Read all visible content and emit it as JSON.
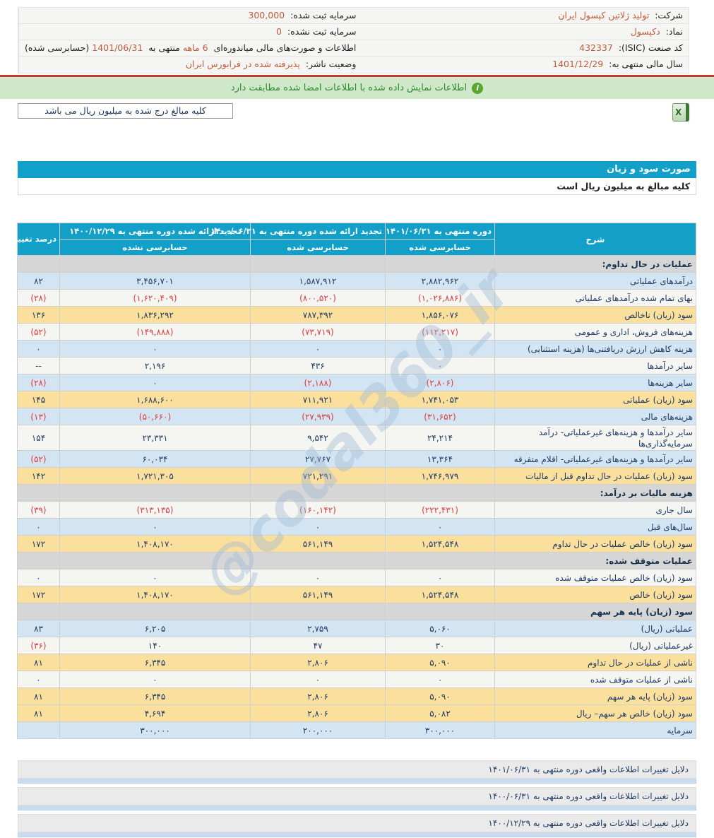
{
  "meta": {
    "company_label": "شرکت:",
    "company_value": "تولید ژلاتین کپسول ایران",
    "symbol_label": "نماد:",
    "symbol_value": "دکپسول",
    "isic_label": "کد صنعت (ISIC):",
    "isic_value": "432337",
    "fiscal_year_label": "سال مالی منتهی به:",
    "fiscal_year_value": "1401/12/29",
    "registered_capital_label": "سرمایه ثبت شده:",
    "registered_capital_value": "300,000",
    "unregistered_capital_label": "سرمایه ثبت نشده:",
    "unregistered_capital_value": "0",
    "report_line_prefix": "اطلاعات و صورت‌های مالی میاندوره‌ای",
    "report_period": "6 ماهه",
    "report_line_mid": "منتهی به",
    "report_date": "1401/06/31",
    "report_line_suffix": "(حسابرسی شده)",
    "publisher_status_label": "وضعیت ناشر:",
    "publisher_status_value": "پذیرفته شده در فرابورس ایران"
  },
  "notices": {
    "signed_match": "اطلاعات نمایش داده شده با اطلاعات امضا شده مطابقت دارد",
    "unit_note": "کلیه مبالغ درج شده به میلیون ریال می باشد"
  },
  "statement": {
    "title": "صورت سود و زیان",
    "subtitle": "کلیه مبالغ به میلیون ریال است"
  },
  "table": {
    "headers": {
      "description": "شرح",
      "period_current": "دوره منتهی به ۱۴۰۱/۰۶/۳۱",
      "period_current_sub": "حسابرسی شده",
      "period_prev": "تجدید ارائه شده دوره منتهی به ۱۴۰۰/۰۶/۳۱",
      "period_prev_sub": "حسابرسی شده",
      "period_year": "تجدید ارائه شده دوره منتهی به ۱۴۰۰/۱۲/۲۹",
      "period_year_sub": "حسابرسی نشده",
      "pct_change": "درصد تغییر"
    },
    "rows": [
      {
        "type": "section",
        "bg": "gray",
        "label": "عملیات در حال تداوم:",
        "v1": "",
        "v2": "",
        "v3": "",
        "pct": ""
      },
      {
        "type": "data",
        "bg": "blue",
        "label": "درآمدهای عملیاتی",
        "v1": "۲,۸۸۲,۹۶۲",
        "v2": "۱,۵۸۷,۹۱۲",
        "v3": "۳,۴۵۶,۷۰۱",
        "pct": "۸۲"
      },
      {
        "type": "data",
        "bg": "white",
        "label": "بهای تمام شده درآمدهای عملیاتی",
        "v1": "(۱,۰۲۶,۸۸۶)",
        "v2": "(۸۰۰,۵۲۰)",
        "v3": "(۱,۶۲۰,۴۰۹)",
        "pct": "(۲۸)"
      },
      {
        "type": "data",
        "bg": "yellow",
        "label": "سود (زیان) ناخالص",
        "v1": "۱,۸۵۶,۰۷۶",
        "v2": "۷۸۷,۳۹۲",
        "v3": "۱,۸۳۶,۲۹۲",
        "pct": "۱۳۶"
      },
      {
        "type": "data",
        "bg": "white",
        "label": "هزینه‌های فروش، اداری و عمومی",
        "v1": "(۱۱۲,۲۱۷)",
        "v2": "(۷۳,۷۱۹)",
        "v3": "(۱۴۹,۸۸۸)",
        "pct": "(۵۲)"
      },
      {
        "type": "data",
        "bg": "blue",
        "label": "هزینه کاهش ارزش دریافتنی‌ها (هزینه استثنایی)",
        "v1": "۰",
        "v2": "۰",
        "v3": "۰",
        "pct": "۰"
      },
      {
        "type": "data",
        "bg": "white",
        "label": "سایر درآمدها",
        "v1": "۰",
        "v2": "۴۳۶",
        "v3": "۲,۱۹۶",
        "pct": "--"
      },
      {
        "type": "data",
        "bg": "blue",
        "label": "سایر هزینه‌ها",
        "v1": "(۲,۸۰۶)",
        "v2": "(۲,۱۸۸)",
        "v3": "۰",
        "pct": "(۲۸)"
      },
      {
        "type": "data",
        "bg": "yellow",
        "label": "سود (زیان) عملیاتی",
        "v1": "۱,۷۴۱,۰۵۳",
        "v2": "۷۱۱,۹۲۱",
        "v3": "۱,۶۸۸,۶۰۰",
        "pct": "۱۴۵"
      },
      {
        "type": "data",
        "bg": "blue",
        "label": "هزینه‌های مالی",
        "v1": "(۳۱,۶۵۲)",
        "v2": "(۲۷,۹۳۹)",
        "v3": "(۵۰,۶۶۰)",
        "pct": "(۱۳)"
      },
      {
        "type": "data",
        "bg": "white",
        "tall": true,
        "label": "سایر درآمدها و هزینه‌های غیرعملیاتی- درآمد سرمایه‌گذاری‌ها",
        "v1": "۲۴,۲۱۴",
        "v2": "۹,۵۴۲",
        "v3": "۲۳,۳۳۱",
        "pct": "۱۵۴"
      },
      {
        "type": "data",
        "bg": "blue",
        "label": "سایر درآمدها و هزینه‌های غیرعملیاتی- اقلام متفرقه",
        "v1": "۱۳,۳۶۴",
        "v2": "۲۷,۷۶۷",
        "v3": "۶۰,۰۳۴",
        "pct": "(۵۲)"
      },
      {
        "type": "data",
        "bg": "yellow",
        "label": "سود (زیان) عملیات در حال تداوم قبل از مالیات",
        "v1": "۱,۷۴۶,۹۷۹",
        "v2": "۷۲۱,۲۹۱",
        "v3": "۱,۷۲۱,۳۰۵",
        "pct": "۱۴۲"
      },
      {
        "type": "section",
        "bg": "gray",
        "label": "هزینه مالیات بر درآمد:",
        "v1": "",
        "v2": "",
        "v3": "",
        "pct": ""
      },
      {
        "type": "data",
        "bg": "white",
        "label": "سال جاری",
        "v1": "(۲۲۲,۴۳۱)",
        "v2": "(۱۶۰,۱۴۲)",
        "v3": "(۳۱۳,۱۳۵)",
        "pct": "(۳۹)"
      },
      {
        "type": "data",
        "bg": "blue",
        "label": "سال‌های قبل",
        "v1": "۰",
        "v2": "۰",
        "v3": "۰",
        "pct": "۰"
      },
      {
        "type": "data",
        "bg": "yellow",
        "label": "سود (زیان) خالص عملیات در حال تداوم",
        "v1": "۱,۵۲۴,۵۴۸",
        "v2": "۵۶۱,۱۴۹",
        "v3": "۱,۴۰۸,۱۷۰",
        "pct": "۱۷۲"
      },
      {
        "type": "section",
        "bg": "gray",
        "label": "عملیات متوقف شده:",
        "v1": "",
        "v2": "",
        "v3": "",
        "pct": ""
      },
      {
        "type": "data",
        "bg": "white",
        "label": "سود (زیان) خالص عملیات متوقف شده",
        "v1": "۰",
        "v2": "۰",
        "v3": "۰",
        "pct": "۰"
      },
      {
        "type": "data",
        "bg": "yellow",
        "label": "سود (زیان) خالص",
        "v1": "۱,۵۲۴,۵۴۸",
        "v2": "۵۶۱,۱۴۹",
        "v3": "۱,۴۰۸,۱۷۰",
        "pct": "۱۷۲"
      },
      {
        "type": "section",
        "bg": "gray",
        "label": "سود (زیان) پایه هر سهم",
        "v1": "",
        "v2": "",
        "v3": "",
        "pct": ""
      },
      {
        "type": "data",
        "bg": "blue",
        "label": "عملیاتی (ریال)",
        "v1": "۵,۰۶۰",
        "v2": "۲,۷۵۹",
        "v3": "۶,۲۰۵",
        "pct": "۸۳"
      },
      {
        "type": "data",
        "bg": "white",
        "label": "غیرعملیاتی (ریال)",
        "v1": "۳۰",
        "v2": "۴۷",
        "v3": "۱۴۰",
        "pct": "(۳۶)"
      },
      {
        "type": "data",
        "bg": "yellow",
        "label": "ناشی از عملیات در حال تداوم",
        "v1": "۵,۰۹۰",
        "v2": "۲,۸۰۶",
        "v3": "۶,۳۴۵",
        "pct": "۸۱"
      },
      {
        "type": "data",
        "bg": "white",
        "label": "ناشی از عملیات متوقف شده",
        "v1": "۰",
        "v2": "۰",
        "v3": "۰",
        "pct": "۰"
      },
      {
        "type": "data",
        "bg": "yellow",
        "label": "سود (زیان) پایه هر سهم",
        "v1": "۵,۰۹۰",
        "v2": "۲,۸۰۶",
        "v3": "۶,۳۴۵",
        "pct": "۸۱"
      },
      {
        "type": "data",
        "bg": "yellow",
        "label": "سود (زیان) خالص هر سهم– ریال",
        "v1": "۵,۰۸۲",
        "v2": "۲,۸۰۶",
        "v3": "۴,۶۹۴",
        "pct": "۸۱"
      },
      {
        "type": "data",
        "bg": "blue",
        "label": "سرمایه",
        "v1": "۳۰۰,۰۰۰",
        "v2": "۲۰۰,۰۰۰",
        "v3": "۳۰۰,۰۰۰",
        "pct": ""
      }
    ]
  },
  "footer_links": [
    {
      "label": "دلایل تغییرات اطلاعات واقعی دوره منتهی به ۱۴۰۱/۰۶/۳۱"
    },
    {
      "label": "دلایل تغییرات اطلاعات واقعی دوره منتهی به ۱۴۰۰/۰۶/۳۱"
    },
    {
      "label": "دلایل تغییرات اطلاعات واقعی دوره منتهی به ۱۴۰۰/۱۲/۲۹"
    }
  ],
  "watermark": "@codal360_ir",
  "colors": {
    "accent_cyan": "#12a0c8",
    "row_blue": "#d3e5f3",
    "row_yellow": "#fbdf9d",
    "row_gray": "#d6d6d6",
    "negative_red": "#e03a3e",
    "value_navy": "#1f3b63",
    "meta_value_orange": "#bf5b3a",
    "banner_green_bg": "#cfe8ca",
    "banner_green_text": "#2f8a2f",
    "separator_red": "#c53a30"
  }
}
